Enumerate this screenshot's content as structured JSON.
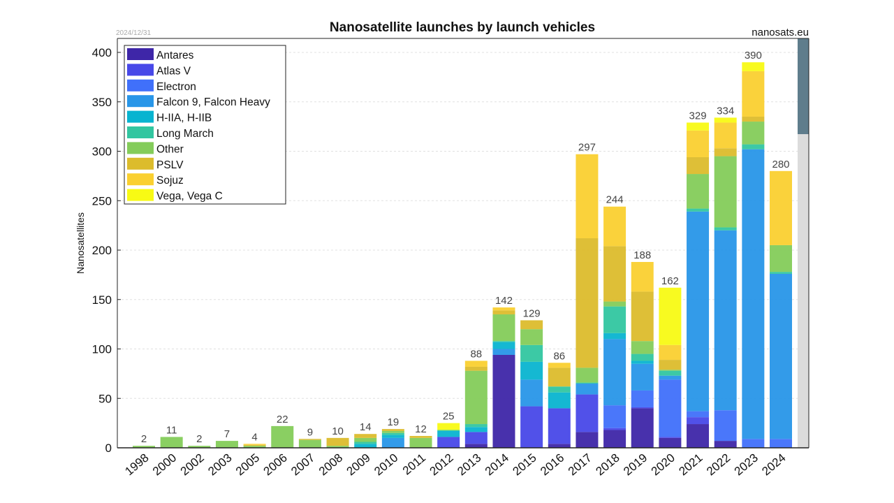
{
  "chart_data": {
    "type": "bar",
    "stacked": true,
    "title": "Nanosatellite launches by launch vehicles",
    "date_note": "2024/12/31",
    "source": "nanosats.eu",
    "xlabel": "",
    "ylabel": "Nanosatellites",
    "ylim": [
      0,
      415
    ],
    "yticks": [
      0,
      50,
      100,
      150,
      200,
      250,
      300,
      350,
      400
    ],
    "grid": true,
    "legend_position": "top-left",
    "categories": [
      "1998",
      "2000",
      "2002",
      "2003",
      "2005",
      "2006",
      "2007",
      "2008",
      "2009",
      "2010",
      "2011",
      "2012",
      "2013",
      "2014",
      "2015",
      "2016",
      "2017",
      "2018",
      "2019",
      "2020",
      "2021",
      "2022",
      "2023",
      "2024"
    ],
    "totals": [
      2,
      11,
      2,
      7,
      4,
      22,
      9,
      10,
      14,
      19,
      12,
      25,
      88,
      142,
      129,
      86,
      297,
      244,
      188,
      162,
      329,
      334,
      390,
      280
    ],
    "series": [
      {
        "name": "Antares",
        "color": "#3e26a8",
        "values": [
          0,
          0,
          0,
          0,
          0,
          0,
          0,
          0,
          0,
          0,
          0,
          0,
          4,
          94,
          0,
          4,
          16,
          18,
          40,
          10,
          24,
          7,
          0,
          0
        ]
      },
      {
        "name": "Atlas V",
        "color": "#4848e8",
        "values": [
          0,
          0,
          0,
          0,
          0,
          0,
          0,
          0,
          0,
          0,
          0,
          11,
          12,
          0,
          42,
          36,
          38,
          2,
          1,
          1,
          7,
          0,
          0,
          0
        ]
      },
      {
        "name": "Electron",
        "color": "#4070fa",
        "values": [
          0,
          0,
          0,
          0,
          0,
          0,
          0,
          0,
          0,
          0,
          0,
          0,
          0,
          0,
          0,
          0,
          0,
          23,
          17,
          58,
          6,
          31,
          9,
          9
        ]
      },
      {
        "name": "Falcon 9, Falcon Heavy",
        "color": "#2896e8",
        "values": [
          0,
          0,
          0,
          0,
          0,
          0,
          0,
          0,
          0,
          10,
          0,
          0,
          0,
          6,
          27,
          0,
          11,
          67,
          27,
          4,
          202,
          182,
          293,
          167
        ]
      },
      {
        "name": "H-IIA, H-IIB",
        "color": "#08b4d0",
        "values": [
          0,
          0,
          0,
          0,
          0,
          0,
          0,
          0,
          4,
          3,
          0,
          6,
          5,
          7,
          18,
          16,
          0,
          6,
          3,
          0,
          0,
          0,
          0,
          0
        ]
      },
      {
        "name": "Long March",
        "color": "#32c6a0",
        "values": [
          0,
          0,
          0,
          0,
          0,
          0,
          0,
          0,
          2,
          2,
          0,
          1,
          3,
          1,
          17,
          6,
          1,
          27,
          7,
          5,
          3,
          3,
          5,
          2
        ]
      },
      {
        "name": "Other",
        "color": "#84cc5a",
        "values": [
          2,
          11,
          2,
          7,
          2,
          22,
          8,
          2,
          4,
          2,
          10,
          0,
          54,
          27,
          16,
          0,
          15,
          5,
          13,
          1,
          35,
          72,
          23,
          27
        ]
      },
      {
        "name": "PSLV",
        "color": "#dcbc2c",
        "values": [
          0,
          0,
          0,
          0,
          1,
          0,
          1,
          8,
          4,
          2,
          2,
          0,
          4,
          4,
          9,
          19,
          131,
          56,
          50,
          10,
          17,
          8,
          5,
          0
        ]
      },
      {
        "name": "Sojuz",
        "color": "#fad030",
        "values": [
          0,
          0,
          0,
          0,
          1,
          0,
          0,
          0,
          0,
          0,
          0,
          0,
          6,
          3,
          0,
          5,
          85,
          40,
          30,
          15,
          27,
          26,
          46,
          75
        ]
      },
      {
        "name": "Vega, Vega C",
        "color": "#f8fa14",
        "values": [
          0,
          0,
          0,
          0,
          0,
          0,
          0,
          0,
          0,
          0,
          0,
          7,
          0,
          0,
          0,
          0,
          0,
          0,
          0,
          58,
          8,
          5,
          9,
          0
        ]
      }
    ]
  }
}
